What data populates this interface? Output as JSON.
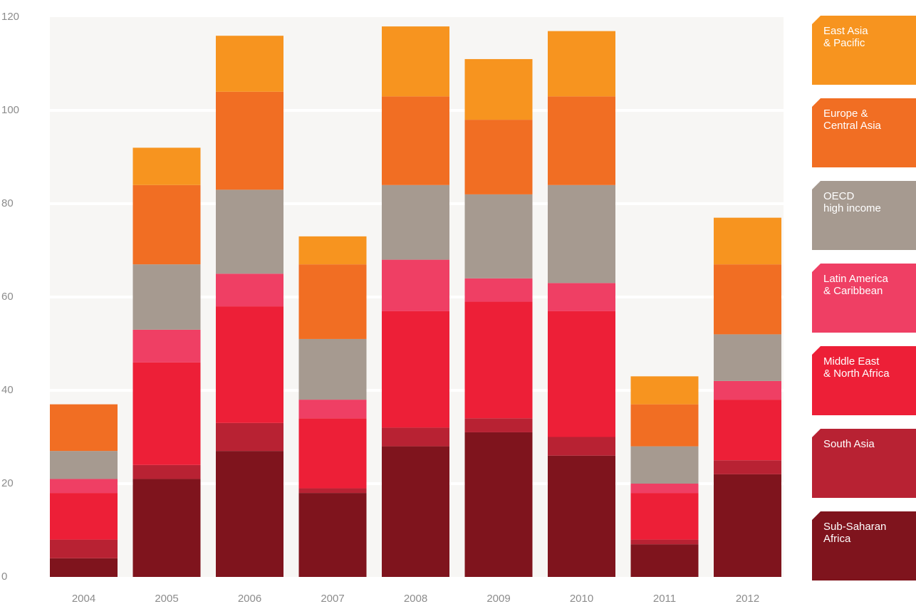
{
  "chart_data": {
    "type": "bar",
    "stacked": true,
    "title": "",
    "xlabel": "",
    "ylabel": "",
    "ylim": [
      0,
      120
    ],
    "yticks": [
      0,
      20,
      40,
      60,
      80,
      100,
      120
    ],
    "grid": true,
    "legend_position": "right",
    "categories": [
      "2004",
      "2005",
      "2006",
      "2007",
      "2008",
      "2009",
      "2010",
      "2011",
      "2012"
    ],
    "series": [
      {
        "name": "Sub-Saharan\nAfrica",
        "color": "#7f141d",
        "values": [
          4,
          21,
          27,
          18,
          28,
          31,
          26,
          7,
          22
        ]
      },
      {
        "name": "South Asia",
        "color": "#b82233",
        "values": [
          4,
          3,
          6,
          1,
          4,
          3,
          4,
          1,
          3
        ]
      },
      {
        "name": "Middle East\n& North Africa",
        "color": "#ed1f37",
        "values": [
          10,
          22,
          25,
          15,
          25,
          25,
          27,
          10,
          13
        ]
      },
      {
        "name": "Latin America\n& Caribbean",
        "color": "#ef3f64",
        "values": [
          3,
          7,
          7,
          4,
          11,
          5,
          6,
          2,
          4
        ]
      },
      {
        "name": "OECD\nhigh income",
        "color": "#a69a90",
        "values": [
          6,
          14,
          18,
          13,
          16,
          18,
          21,
          8,
          10
        ]
      },
      {
        "name": "Europe &\nCentral Asia",
        "color": "#f16e23",
        "values": [
          10,
          17,
          21,
          16,
          19,
          16,
          19,
          9,
          15
        ]
      },
      {
        "name": "East Asia\n& Pacific",
        "color": "#f7941f",
        "values": [
          0,
          8,
          12,
          6,
          15,
          13,
          14,
          6,
          10
        ]
      }
    ]
  },
  "colors": {
    "plot_background": "#f7f6f4",
    "gridline": "#ffffff",
    "tick_text": "#8c8c8c"
  }
}
